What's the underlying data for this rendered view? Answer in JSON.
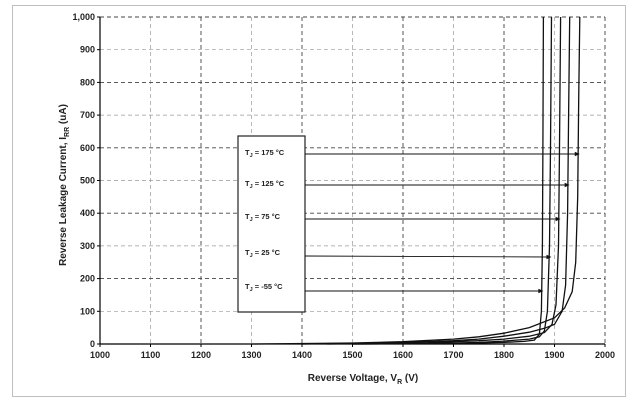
{
  "chart_data": {
    "type": "line",
    "title": "",
    "xlabel": {
      "main": "Reverse Voltage, V",
      "sub": "R",
      "unit": " (V)"
    },
    "ylabel": {
      "main": "Reverse Leakage Current, I",
      "sub": "RR",
      "unit": " (uA)"
    },
    "xlim": [
      1000,
      2000
    ],
    "ylim": [
      0,
      1000
    ],
    "x_ticks": [
      "1000",
      "1100",
      "1200",
      "1300",
      "1400",
      "1500",
      "1600",
      "1700",
      "1800",
      "1900",
      "2000"
    ],
    "y_ticks": [
      "0",
      "100",
      "200",
      "300",
      "400",
      "500",
      "600",
      "700",
      "800",
      "900",
      "1,000"
    ],
    "grid": true,
    "legend_position": "center-left",
    "series": [
      {
        "name": "T = 175 °C",
        "sub": "J",
        "x": [
          1300,
          1500,
          1600,
          1700,
          1750,
          1800,
          1850,
          1900,
          1920,
          1935,
          1942,
          1946,
          1948,
          1950
        ],
        "y": [
          0,
          3,
          7,
          15,
          22,
          33,
          50,
          80,
          110,
          160,
          250,
          450,
          750,
          1000
        ]
      },
      {
        "name": "T = 125 °C",
        "sub": "J",
        "x": [
          1400,
          1500,
          1600,
          1700,
          1750,
          1800,
          1850,
          1880,
          1900,
          1915,
          1922,
          1926,
          1928,
          1930
        ],
        "y": [
          0,
          2,
          5,
          10,
          15,
          24,
          36,
          48,
          60,
          100,
          180,
          400,
          700,
          1000
        ]
      },
      {
        "name": "T = 75 °C",
        "sub": "J",
        "x": [
          1450,
          1550,
          1650,
          1700,
          1750,
          1800,
          1850,
          1880,
          1895,
          1903,
          1908,
          1910,
          1912
        ],
        "y": [
          0,
          2,
          4,
          7,
          10,
          15,
          24,
          35,
          60,
          120,
          300,
          600,
          1000
        ]
      },
      {
        "name": "T = 25 °C",
        "sub": "J",
        "x": [
          1500,
          1600,
          1700,
          1750,
          1800,
          1850,
          1870,
          1880,
          1886,
          1890,
          1892,
          1894
        ],
        "y": [
          0,
          1,
          3,
          5,
          9,
          15,
          22,
          40,
          100,
          300,
          600,
          1000
        ]
      },
      {
        "name": "T = -55 °C",
        "sub": "J",
        "x": [
          1500,
          1600,
          1700,
          1750,
          1800,
          1840,
          1860,
          1870,
          1874,
          1876,
          1877,
          1878
        ],
        "y": [
          0,
          1,
          2,
          3,
          5,
          8,
          12,
          30,
          100,
          300,
          600,
          1000
        ]
      }
    ]
  }
}
